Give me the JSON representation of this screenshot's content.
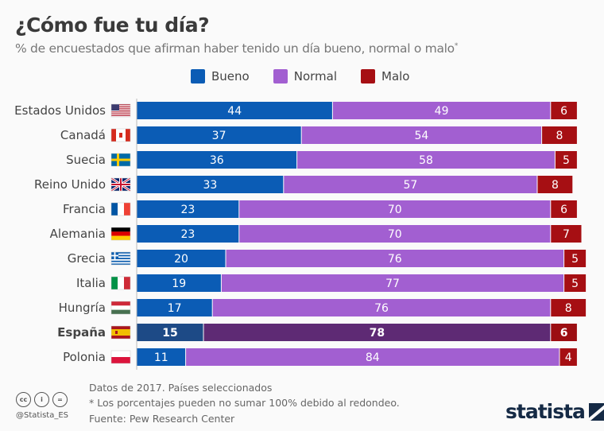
{
  "header": {
    "title": "¿Cómo fue tu día?",
    "subtitle": "% de encuestados que afirman haber tenido un día bueno, normal o malo",
    "subtitle_mark": "*"
  },
  "chart_data": {
    "type": "bar",
    "orientation": "horizontal",
    "stacked": true,
    "legend_position": "top",
    "categories": [
      "Estados Unidos",
      "Canadá",
      "Suecia",
      "Reino Unido",
      "Francia",
      "Alemania",
      "Grecia",
      "Italia",
      "Hungría",
      "España",
      "Polonia"
    ],
    "highlighted_category": "España",
    "series": [
      {
        "name": "Bueno",
        "color": "#0b5cb5",
        "highlight_color": "#1d4a86",
        "values": [
          44,
          37,
          36,
          33,
          23,
          23,
          20,
          19,
          17,
          15,
          11
        ]
      },
      {
        "name": "Normal",
        "color": "#a25fd1",
        "highlight_color": "#5e2a74",
        "values": [
          49,
          54,
          58,
          57,
          70,
          70,
          76,
          77,
          76,
          78,
          84
        ]
      },
      {
        "name": "Malo",
        "color": "#a60f13",
        "highlight_color": "#9c0e12",
        "values": [
          6,
          8,
          5,
          8,
          6,
          7,
          5,
          5,
          8,
          6,
          4
        ]
      }
    ],
    "flags": [
      "us",
      "ca",
      "se",
      "gb",
      "fr",
      "de",
      "gr",
      "it",
      "hu",
      "es",
      "pl"
    ],
    "xlim": [
      0,
      100
    ],
    "grid": false
  },
  "footer": {
    "note1": "Datos de 2017. Países seleccionados",
    "note2": "* Los porcentajes pueden no sumar 100% debido al redondeo.",
    "source": "Fuente: Pew Research Center",
    "handle": "@Statista_ES",
    "brand": "statista",
    "cc_icons": [
      "cc",
      "by",
      "nd"
    ]
  }
}
